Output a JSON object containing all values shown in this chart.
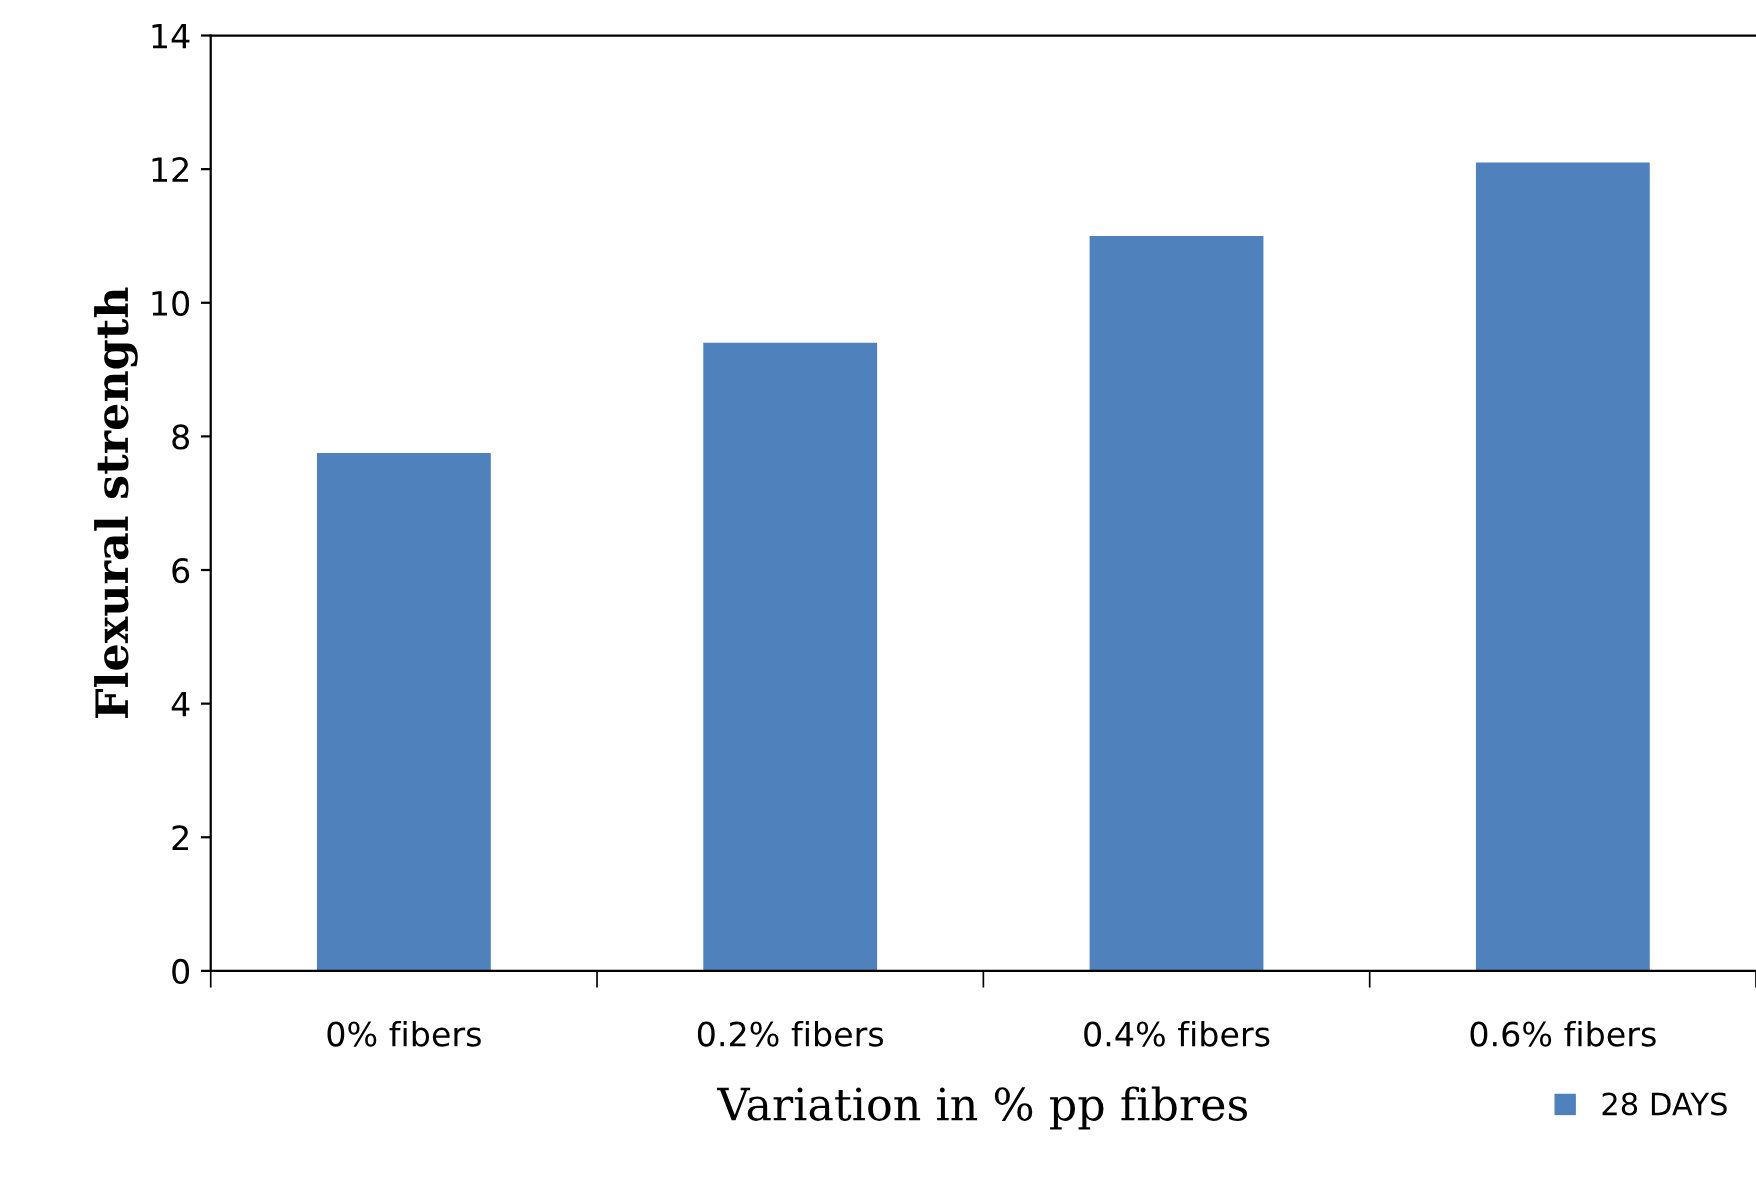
{
  "chart_data": {
    "type": "bar",
    "xlabel": "Variation in % pp fibres",
    "ylabel": "Flexural strength",
    "categories": [
      "0% fibers",
      "0.2% fibers",
      "0.4% fibers",
      "0.6% fibers"
    ],
    "series": [
      {
        "name": "28 DAYS",
        "color": "#4f81bd",
        "values": [
          7.75,
          9.4,
          11.0,
          12.1
        ]
      }
    ],
    "ylim": [
      0,
      14
    ],
    "yticks": [
      0,
      2,
      4,
      6,
      8,
      10,
      12,
      14
    ],
    "grid": false,
    "legend": "bottom right"
  }
}
